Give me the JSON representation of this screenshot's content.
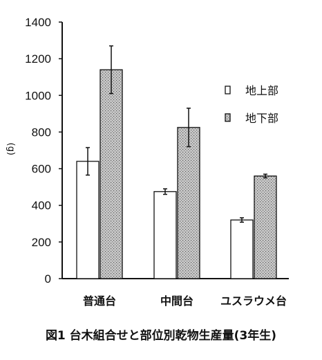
{
  "chart_data": {
    "type": "bar",
    "categories": [
      "普通台",
      "中間台",
      "ユスラウメ台"
    ],
    "series": [
      {
        "name": "地上部",
        "values": [
          640,
          475,
          320
        ],
        "errors": [
          75,
          15,
          12
        ],
        "pattern": "white"
      },
      {
        "name": "地下部",
        "values": [
          1140,
          825,
          560
        ],
        "errors": [
          130,
          105,
          10
        ],
        "pattern": "stipple"
      }
    ],
    "ylim": [
      0,
      1400
    ],
    "yticks": [
      "0",
      "200",
      "400",
      "600",
      "800",
      "1000",
      "1200",
      "1400"
    ],
    "ylabel": "(g)",
    "title": "図1  台木組合せと部位別乾物生産量(3年生)",
    "legend_position": "right",
    "grid": false
  }
}
